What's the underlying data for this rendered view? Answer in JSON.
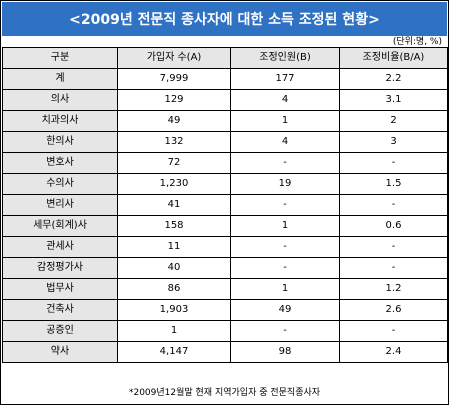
{
  "title": "<2009년 전문직 종사자에 대한 소득 조정된 현황>",
  "unit_note": "(단위:명, %)",
  "table": {
    "headers": [
      "구분",
      "가입자 수(A)",
      "조정인원(B)",
      "조정비율(B/A)"
    ],
    "rows": [
      {
        "category": "계",
        "members": "7,999",
        "adjusted": "177",
        "ratio": "2.2"
      },
      {
        "category": "의사",
        "members": "129",
        "adjusted": "4",
        "ratio": "3.1"
      },
      {
        "category": "치과의사",
        "members": "49",
        "adjusted": "1",
        "ratio": "2"
      },
      {
        "category": "한의사",
        "members": "132",
        "adjusted": "4",
        "ratio": "3"
      },
      {
        "category": "변호사",
        "members": "72",
        "adjusted": "-",
        "ratio": "-"
      },
      {
        "category": "수의사",
        "members": "1,230",
        "adjusted": "19",
        "ratio": "1.5"
      },
      {
        "category": "변리사",
        "members": "41",
        "adjusted": "-",
        "ratio": "-"
      },
      {
        "category": "세무(회계)사",
        "members": "158",
        "adjusted": "1",
        "ratio": "0.6"
      },
      {
        "category": "관세사",
        "members": "11",
        "adjusted": "-",
        "ratio": "-"
      },
      {
        "category": "감정평가사",
        "members": "40",
        "adjusted": "-",
        "ratio": "-"
      },
      {
        "category": "법무사",
        "members": "86",
        "adjusted": "1",
        "ratio": "1.2"
      },
      {
        "category": "건축사",
        "members": "1,903",
        "adjusted": "49",
        "ratio": "2.6"
      },
      {
        "category": "공증인",
        "members": "1",
        "adjusted": "-",
        "ratio": "-"
      },
      {
        "category": "약사",
        "members": "4,147",
        "adjusted": "98",
        "ratio": "2.4"
      }
    ]
  },
  "footnote": "*2009년12월말 현재 지역가입자 중 전문직종사자",
  "colors": {
    "title_bg": "#2f72c3",
    "title_text": "#ffffff",
    "header_bg": "#e6e6e6",
    "border": "#000000"
  }
}
